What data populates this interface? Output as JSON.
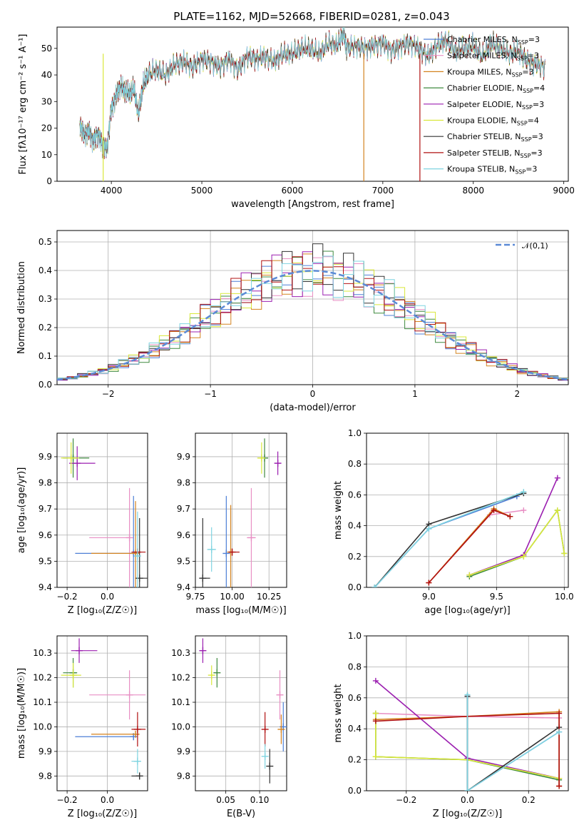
{
  "title": "PLATE=1162, MJD=52668, FIBERID=0281, z=0.043",
  "models": [
    {
      "name": "Chabrier MILES",
      "nssp": "3",
      "color": "#4d7fd6"
    },
    {
      "name": "Salpeter MILES",
      "nssp": "3",
      "color": "#e88fc4"
    },
    {
      "name": "Kroupa MILES",
      "nssp": "3",
      "color": "#d4831f"
    },
    {
      "name": "Chabrier ELODIE",
      "nssp": "4",
      "color": "#3f8a3f"
    },
    {
      "name": "Salpeter ELODIE",
      "nssp": "3",
      "color": "#9b1fb0"
    },
    {
      "name": "Kroupa ELODIE",
      "nssp": "4",
      "color": "#d9e83a"
    },
    {
      "name": "Chabrier STELIB",
      "nssp": "3",
      "color": "#333333"
    },
    {
      "name": "Salpeter STELIB",
      "nssp": "3",
      "color": "#b01010"
    },
    {
      "name": "Kroupa STELIB",
      "nssp": "3",
      "color": "#7fd4e0"
    }
  ],
  "chart_data": [
    {
      "id": "spectrum",
      "type": "line",
      "title": "PLATE=1162, MJD=52668, FIBERID=0281, z=0.043",
      "xlabel": "wavelength [Angstrom, rest frame]",
      "ylabel": "Flux [fλ10⁻¹⁷ erg cm⁻² s⁻¹ A⁻¹]",
      "xlim": [
        3400,
        9050
      ],
      "ylim": [
        0,
        58
      ],
      "xticks": [
        4000,
        5000,
        6000,
        7000,
        8000,
        9000
      ],
      "yticks": [
        0,
        10,
        20,
        30,
        40,
        50
      ],
      "x": [
        3650,
        3700,
        3750,
        3800,
        3850,
        3900,
        3950,
        4000,
        4050,
        4100,
        4150,
        4200,
        4250,
        4300,
        4350,
        4400,
        4500,
        4600,
        4700,
        4800,
        4900,
        5000,
        5100,
        5200,
        5300,
        5400,
        5500,
        5600,
        5700,
        5800,
        5900,
        6000,
        6100,
        6200,
        6300,
        6400,
        6500,
        6563,
        6600,
        6700,
        6800,
        6900,
        7000,
        7100,
        7200,
        7300,
        7400,
        7500,
        7600,
        7700,
        7800,
        7900,
        8000,
        8100,
        8200,
        8300,
        8400,
        8500,
        8600,
        8700,
        8800
      ],
      "y": [
        22,
        17,
        19,
        15,
        18,
        14,
        12,
        27,
        32,
        36,
        34,
        33,
        35,
        25,
        36,
        40,
        42,
        40,
        44,
        45,
        43,
        46,
        45,
        43,
        46,
        42,
        47,
        46,
        47,
        45,
        48,
        48,
        50,
        50,
        48,
        52,
        51,
        56,
        50,
        51,
        50,
        51,
        52,
        49,
        51,
        52,
        50,
        47,
        51,
        53,
        49,
        50,
        51,
        47,
        52,
        50,
        48,
        49,
        45,
        44,
        43
      ],
      "legend": "upper right"
    },
    {
      "id": "residuals",
      "type": "histogram",
      "xlabel": "(data-model)/error",
      "ylabel": "Normed distribution",
      "xlim": [
        -2.5,
        2.5
      ],
      "ylim": [
        0,
        0.54
      ],
      "xticks": [
        -2,
        -1,
        0,
        1,
        2
      ],
      "yticks": [
        0.0,
        0.1,
        0.2,
        0.3,
        0.4,
        0.5
      ],
      "reference_label": "𝒩(0,1)",
      "bin_edges_start": -2.5,
      "bin_width": 0.1
    },
    {
      "id": "age_vs_Z",
      "type": "scatter",
      "xlabel": "Z [log₁₀(Z/Z☉)]",
      "ylabel": "age  [log₁₀(age/yr)]",
      "xlim": [
        -0.25,
        0.2
      ],
      "ylim": [
        9.4,
        9.99
      ],
      "xticks": [
        -0.2,
        0.0
      ],
      "yticks": [
        9.4,
        9.5,
        9.6,
        9.7,
        9.8,
        9.9
      ],
      "points": [
        {
          "model": 0,
          "x": 0.13,
          "y": 9.53,
          "xerr": [
            0.29,
            0.0
          ],
          "yerr": 0.22
        },
        {
          "model": 1,
          "x": 0.11,
          "y": 9.59,
          "xerr": [
            0.2,
            0.0
          ],
          "yerr": 0.19
        },
        {
          "model": 2,
          "x": 0.14,
          "y": 9.53,
          "xerr": [
            0.22,
            0.02
          ],
          "yerr": 0.2
        },
        {
          "model": 3,
          "x": -0.17,
          "y": 9.895,
          "xerr": [
            0.05,
            0.08
          ],
          "yerr": 0.075
        },
        {
          "model": 4,
          "x": -0.15,
          "y": 9.875,
          "xerr": [
            0.04,
            0.09
          ],
          "yerr": 0.065
        },
        {
          "model": 5,
          "x": -0.18,
          "y": 9.895,
          "xerr": [
            0.05,
            0.04
          ],
          "yerr": 0.06
        },
        {
          "model": 6,
          "x": 0.16,
          "y": 9.435,
          "xerr": [
            0.02,
            0.04
          ],
          "yerr": 0.23
        },
        {
          "model": 7,
          "x": 0.15,
          "y": 9.535,
          "xerr": [
            0.03,
            0.04
          ],
          "yerr": 0.0
        },
        {
          "model": 8,
          "x": 0.15,
          "y": 9.52,
          "xerr": [
            0.01,
            0.01
          ],
          "yerr": 0.17
        }
      ]
    },
    {
      "id": "age_vs_mass",
      "type": "scatter",
      "xlabel": "mass [log₁₀(M/M☉)]",
      "ylabel": "",
      "xlim": [
        9.75,
        10.37
      ],
      "ylim": [
        9.4,
        9.99
      ],
      "xticks": [
        9.75,
        10.0,
        10.25
      ],
      "yticks": [
        9.4,
        9.5,
        9.6,
        9.7,
        9.8,
        9.9
      ],
      "points": [
        {
          "model": 0,
          "x": 9.96,
          "y": 9.53,
          "xerr": [
            0.0,
            0.0
          ],
          "yerr": 0.22
        },
        {
          "model": 1,
          "x": 10.13,
          "y": 9.59,
          "xerr": [
            0.03,
            0.03
          ],
          "yerr": 0.19
        },
        {
          "model": 2,
          "x": 9.99,
          "y": 9.535,
          "xerr": [
            0.0,
            0.0
          ],
          "yerr": 0.18
        },
        {
          "model": 3,
          "x": 10.22,
          "y": 9.895,
          "xerr": [
            0.0,
            0.0
          ],
          "yerr": 0.075
        },
        {
          "model": 4,
          "x": 10.31,
          "y": 9.875,
          "xerr": [
            0.02,
            0.02
          ],
          "yerr": 0.045
        },
        {
          "model": 5,
          "x": 10.2,
          "y": 9.895,
          "xerr": [
            0.03,
            0.0
          ],
          "yerr": 0.06
        },
        {
          "model": 6,
          "x": 9.8,
          "y": 9.435,
          "xerr": [
            0.0,
            0.05
          ],
          "yerr": 0.23
        },
        {
          "model": 7,
          "x": 10.0,
          "y": 9.535,
          "xerr": [
            0.02,
            0.05
          ],
          "yerr": 0.0
        },
        {
          "model": 8,
          "x": 9.86,
          "y": 9.545,
          "xerr": [
            0.03,
            0.03
          ],
          "yerr": 0.085
        }
      ]
    },
    {
      "id": "weight_vs_age",
      "type": "line",
      "xlabel": "age  [log₁₀(age/yr)]",
      "ylabel": "mass weight",
      "xlim": [
        8.54,
        10.03
      ],
      "ylim": [
        0,
        1.0
      ],
      "xticks": [
        9.0,
        9.5,
        10.0
      ],
      "yticks": [
        0.0,
        0.2,
        0.4,
        0.6,
        0.8,
        1.0
      ],
      "series": [
        {
          "model": 0,
          "x": [
            8.6,
            9.0,
            9.65
          ],
          "y": [
            0.0,
            0.38,
            0.59
          ]
        },
        {
          "model": 1,
          "x": [
            9.0,
            9.45,
            9.7
          ],
          "y": [
            0.03,
            0.47,
            0.5
          ]
        },
        {
          "model": 2,
          "x": [
            9.0,
            9.48,
            9.6
          ],
          "y": [
            0.03,
            0.51,
            0.46
          ]
        },
        {
          "model": 3,
          "x": [
            9.3,
            9.7,
            9.95,
            10.0
          ],
          "y": [
            0.07,
            0.2,
            0.5,
            0.22
          ]
        },
        {
          "model": 4,
          "x": [
            9.3,
            9.7,
            9.95
          ],
          "y": [
            0.08,
            0.21,
            0.71
          ]
        },
        {
          "model": 5,
          "x": [
            9.3,
            9.7,
            9.95,
            10.0
          ],
          "y": [
            0.08,
            0.2,
            0.5,
            0.22
          ]
        },
        {
          "model": 6,
          "x": [
            8.6,
            9.0,
            9.7
          ],
          "y": [
            0.0,
            0.41,
            0.61
          ]
        },
        {
          "model": 7,
          "x": [
            9.0,
            9.48,
            9.6
          ],
          "y": [
            0.03,
            0.5,
            0.46
          ]
        },
        {
          "model": 8,
          "x": [
            8.6,
            9.0,
            9.7
          ],
          "y": [
            0.0,
            0.38,
            0.62
          ]
        }
      ]
    },
    {
      "id": "mass_vs_Z",
      "type": "scatter",
      "xlabel": "Z [log₁₀(Z/Z☉)]",
      "ylabel": "mass [log₁₀(M/M☉)]",
      "xlim": [
        -0.25,
        0.2
      ],
      "ylim": [
        9.74,
        10.37
      ],
      "xticks": [
        -0.2,
        0.0
      ],
      "yticks": [
        9.8,
        9.9,
        10.0,
        10.1,
        10.2,
        10.3
      ],
      "points": [
        {
          "model": 0,
          "x": 0.13,
          "y": 9.96,
          "xerr": [
            0.29,
            0.0
          ],
          "yerr": 0.0
        },
        {
          "model": 1,
          "x": 0.11,
          "y": 10.13,
          "xerr": [
            0.2,
            0.08
          ],
          "yerr": 0.1
        },
        {
          "model": 2,
          "x": 0.14,
          "y": 9.97,
          "xerr": [
            0.22,
            0.02
          ],
          "yerr": 0.0
        },
        {
          "model": 3,
          "x": -0.17,
          "y": 10.22,
          "xerr": [
            0.05,
            0.02
          ],
          "yerr": 0.06
        },
        {
          "model": 4,
          "x": -0.14,
          "y": 10.31,
          "xerr": [
            0.04,
            0.09
          ],
          "yerr": 0.05
        },
        {
          "model": 5,
          "x": -0.17,
          "y": 10.21,
          "xerr": [
            0.06,
            0.04
          ],
          "yerr": 0.05
        },
        {
          "model": 6,
          "x": 0.16,
          "y": 9.8,
          "xerr": [
            0.04,
            0.0
          ],
          "yerr": 0.0
        },
        {
          "model": 7,
          "x": 0.15,
          "y": 9.99,
          "xerr": [
            0.03,
            0.04
          ],
          "yerr": 0.07
        },
        {
          "model": 8,
          "x": 0.15,
          "y": 9.86,
          "xerr": [
            0.03,
            0.01
          ],
          "yerr": 0.05
        }
      ]
    },
    {
      "id": "mass_vs_ebv",
      "type": "scatter",
      "xlabel": "E(B-V)",
      "ylabel": "",
      "xlim": [
        0.005,
        0.14
      ],
      "ylim": [
        9.74,
        10.37
      ],
      "xticks": [
        0.05,
        0.1
      ],
      "yticks": [
        9.8,
        9.9,
        10.0,
        10.1,
        10.2,
        10.3
      ],
      "points": [
        {
          "model": 0,
          "x": 0.135,
          "y": 10.0,
          "xerr": [
            0.0,
            0.0
          ],
          "yerr": 0.1
        },
        {
          "model": 1,
          "x": 0.13,
          "y": 10.13,
          "xerr": [
            0.0,
            0.0
          ],
          "yerr": 0.1
        },
        {
          "model": 2,
          "x": 0.132,
          "y": 9.99,
          "xerr": [
            0.0,
            0.0
          ],
          "yerr": 0.06
        },
        {
          "model": 3,
          "x": 0.037,
          "y": 10.22,
          "xerr": [
            0.0,
            0.0
          ],
          "yerr": 0.06
        },
        {
          "model": 4,
          "x": 0.016,
          "y": 10.31,
          "xerr": [
            0.0,
            0.0
          ],
          "yerr": 0.05
        },
        {
          "model": 5,
          "x": 0.029,
          "y": 10.21,
          "xerr": [
            0.0,
            0.0
          ],
          "yerr": 0.04
        },
        {
          "model": 6,
          "x": 0.115,
          "y": 9.84,
          "xerr": [
            0.0,
            0.0
          ],
          "yerr": 0.07
        },
        {
          "model": 7,
          "x": 0.108,
          "y": 9.99,
          "xerr": [
            0.0,
            0.0
          ],
          "yerr": 0.07
        },
        {
          "model": 8,
          "x": 0.108,
          "y": 9.88,
          "xerr": [
            0.0,
            0.0
          ],
          "yerr": 0.05
        }
      ]
    },
    {
      "id": "weight_vs_Z",
      "type": "line",
      "xlabel": "Z [log₁₀(Z/Z☉)]",
      "ylabel": "mass weight",
      "xlim": [
        -0.33,
        0.33
      ],
      "ylim": [
        0,
        1.0
      ],
      "xticks": [
        -0.2,
        0.0,
        0.2
      ],
      "yticks": [
        0.0,
        0.2,
        0.4,
        0.6,
        0.8,
        1.0
      ],
      "series": [
        {
          "model": 0,
          "x": [
            0.0,
            0.0,
            0.3
          ],
          "y": [
            0.61,
            0.0,
            0.38
          ]
        },
        {
          "model": 1,
          "x": [
            -0.3,
            0.0,
            0.3
          ],
          "y": [
            0.5,
            0.48,
            0.47
          ]
        },
        {
          "model": 2,
          "x": [
            -0.3,
            0.0,
            0.3,
            0.3
          ],
          "y": [
            0.46,
            0.48,
            0.51,
            0.03
          ]
        },
        {
          "model": 3,
          "x": [
            -0.3,
            -0.3,
            0.0,
            0.3
          ],
          "y": [
            0.5,
            0.22,
            0.2,
            0.07
          ]
        },
        {
          "model": 4,
          "x": [
            -0.3,
            0.0,
            0.3
          ],
          "y": [
            0.71,
            0.21,
            0.08
          ]
        },
        {
          "model": 5,
          "x": [
            -0.3,
            -0.3,
            0.0,
            0.3
          ],
          "y": [
            0.5,
            0.22,
            0.2,
            0.08
          ]
        },
        {
          "model": 6,
          "x": [
            0.0,
            0.0,
            0.3
          ],
          "y": [
            0.61,
            0.0,
            0.41
          ]
        },
        {
          "model": 7,
          "x": [
            -0.3,
            0.0,
            0.3,
            0.3
          ],
          "y": [
            0.45,
            0.48,
            0.5,
            0.03
          ]
        },
        {
          "model": 8,
          "x": [
            0.0,
            0.0,
            0.3
          ],
          "y": [
            0.62,
            0.0,
            0.38
          ]
        }
      ]
    }
  ]
}
